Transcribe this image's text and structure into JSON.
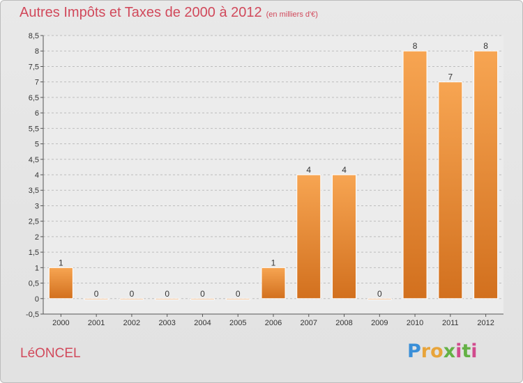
{
  "header": {
    "title": "Autres Impôts et Taxes de 2000 à 2012",
    "subtitle": "(en milliers d'€)"
  },
  "footer": {
    "city": "LéONCEL",
    "brand_letters": [
      "P",
      "r",
      "o",
      "x",
      "i",
      "t",
      "i"
    ]
  },
  "colors": {
    "bar_top": "#f7a552",
    "bar_bottom": "#d2701e",
    "title": "#d1495b",
    "background": "#e6e6e6"
  },
  "chart_data": {
    "type": "bar",
    "title": "Autres Impôts et Taxes de 2000 à 2012",
    "subtitle": "(en milliers d'€)",
    "categories": [
      "2000",
      "2001",
      "2002",
      "2003",
      "2004",
      "2005",
      "2006",
      "2007",
      "2008",
      "2009",
      "2010",
      "2011",
      "2012"
    ],
    "values": [
      1,
      0,
      0,
      0,
      0,
      0,
      1,
      4,
      4,
      0,
      8,
      7,
      8
    ],
    "value_labels": [
      "1",
      "0",
      "0",
      "0",
      "0",
      "0",
      "1",
      "4",
      "4",
      "0",
      "8",
      "7",
      "8"
    ],
    "ylim": [
      -0.5,
      8.5
    ],
    "yticks": [
      "-0,5",
      "0",
      "0,5",
      "1",
      "1,5",
      "2",
      "2,5",
      "3",
      "3,5",
      "4",
      "4,5",
      "5",
      "5,5",
      "6",
      "6,5",
      "7",
      "7,5",
      "8",
      "8,5"
    ],
    "ytick_values": [
      -0.5,
      0,
      0.5,
      1,
      1.5,
      2,
      2.5,
      3,
      3.5,
      4,
      4.5,
      5,
      5.5,
      6,
      6.5,
      7,
      7.5,
      8,
      8.5
    ],
    "grid": true,
    "legend": "none"
  }
}
